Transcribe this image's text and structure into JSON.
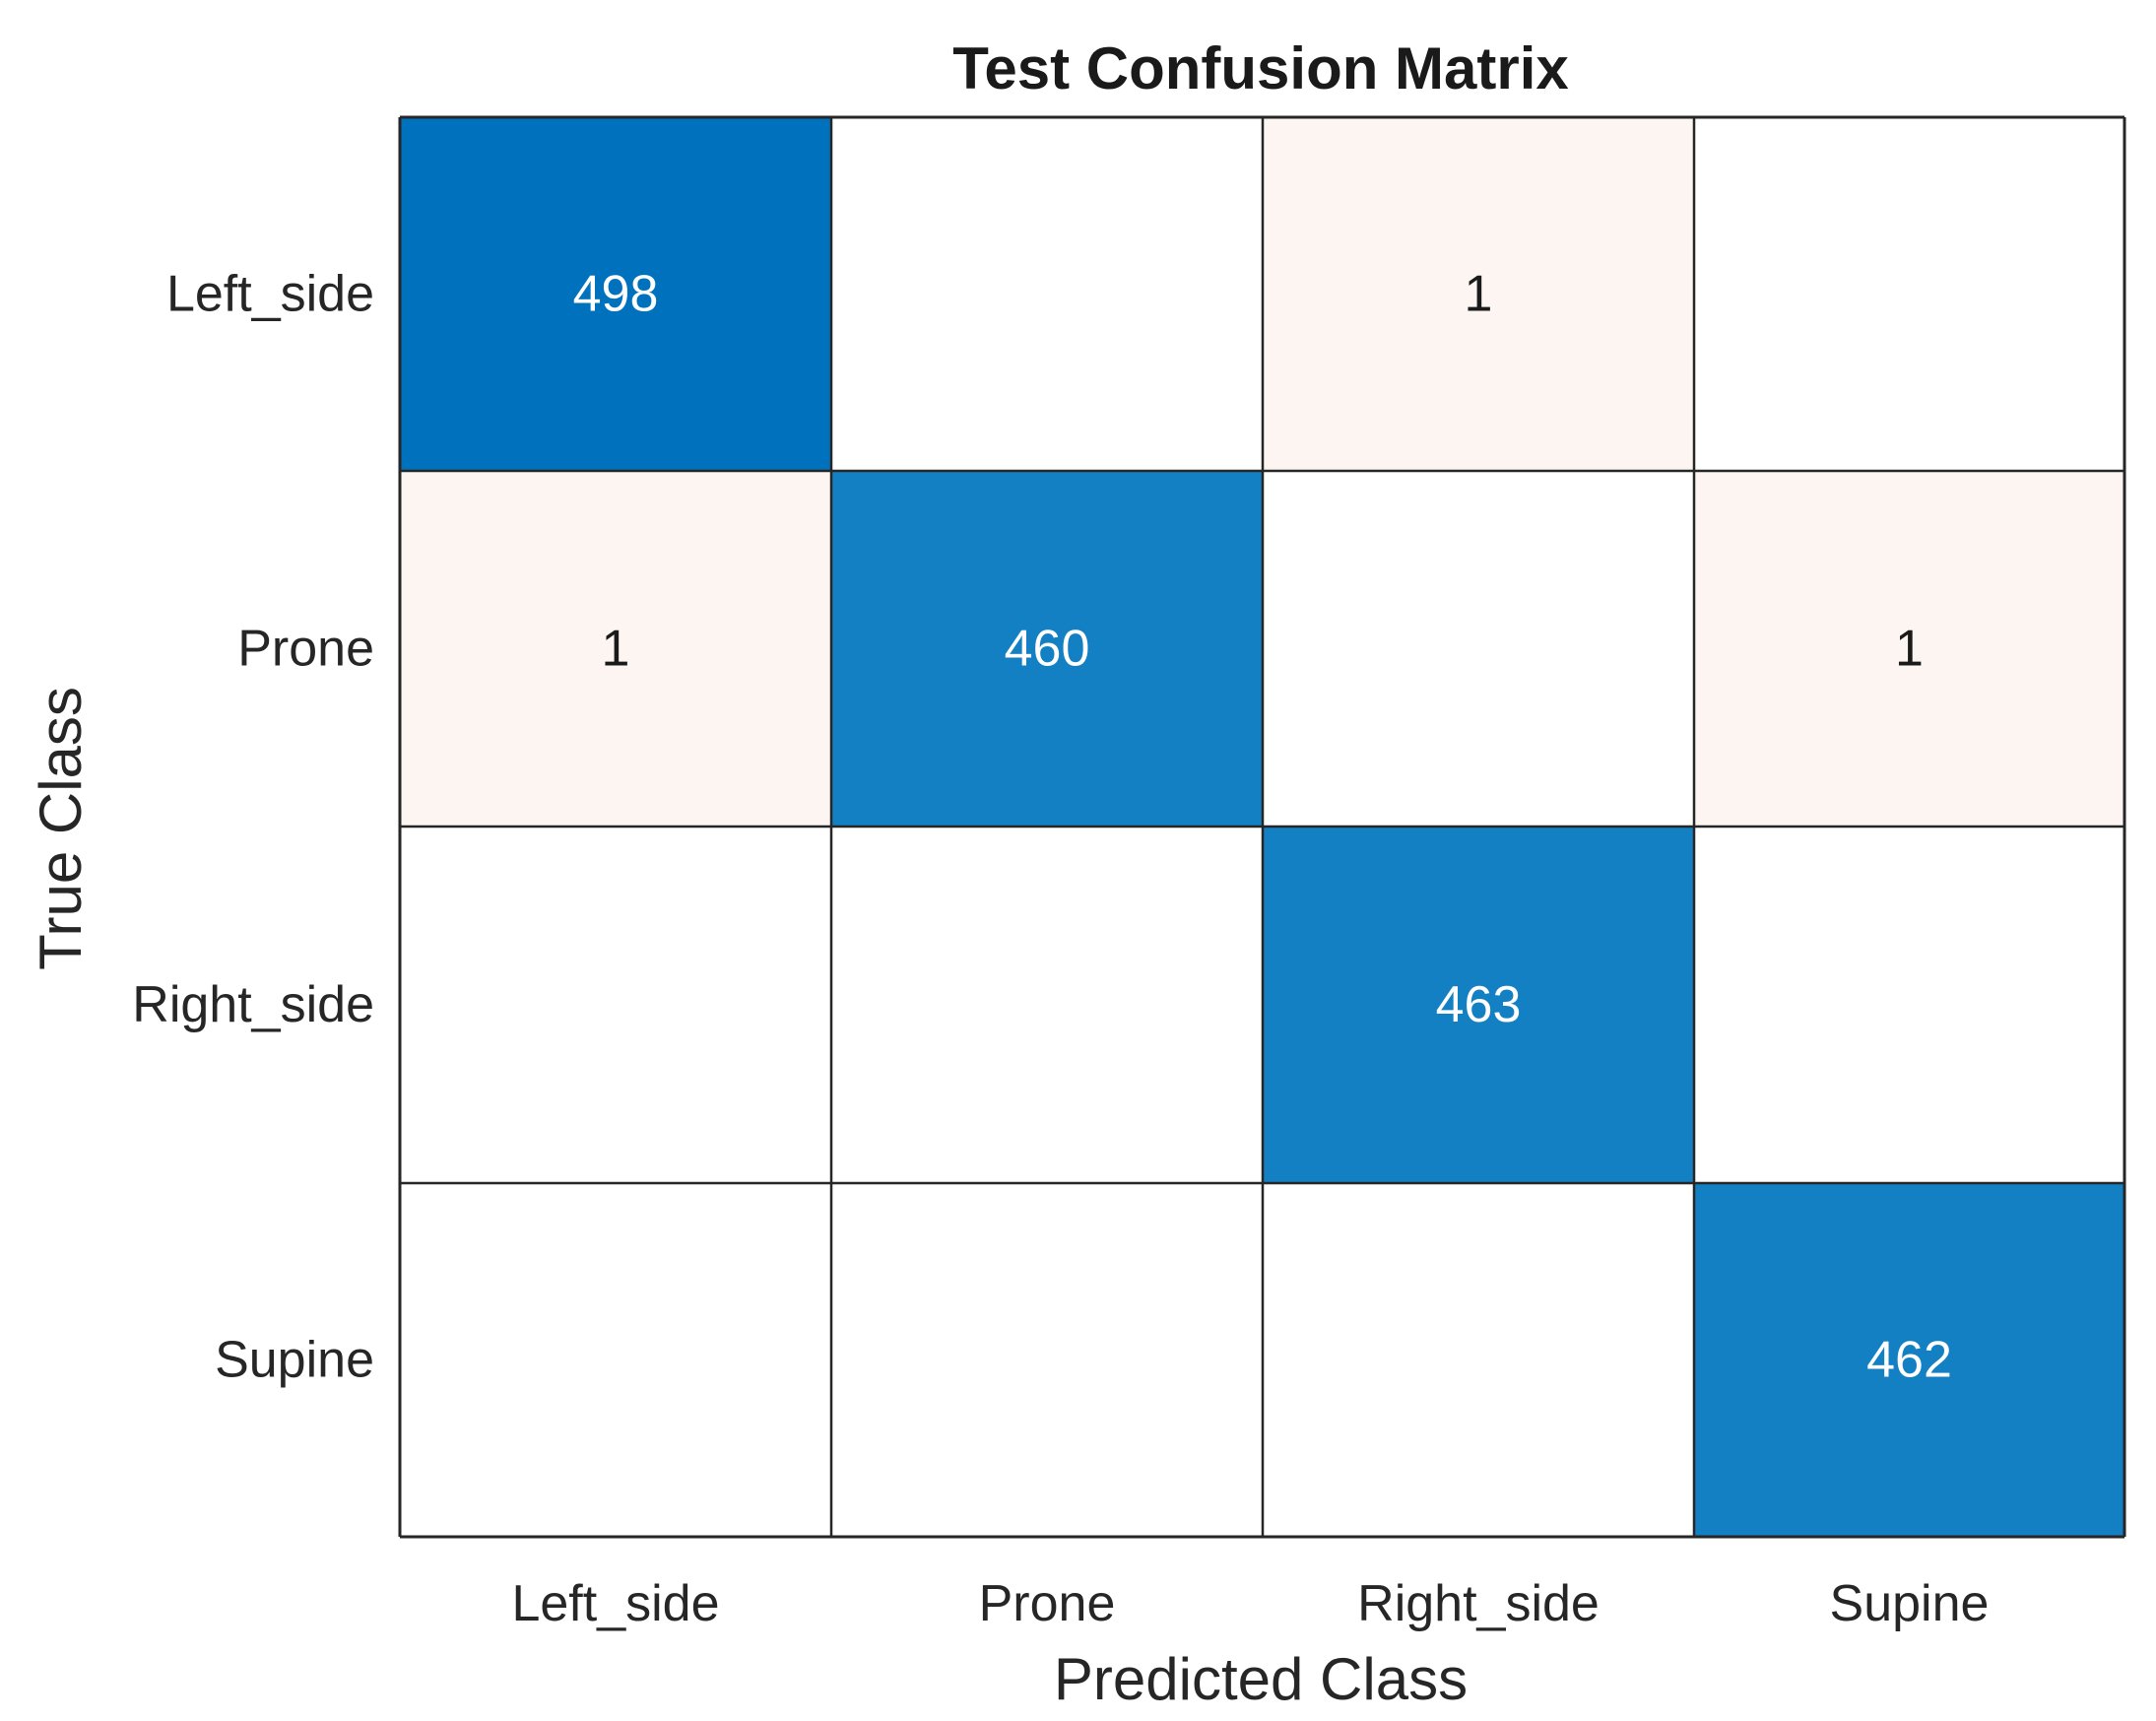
{
  "chart_data": {
    "type": "heatmap",
    "title": "Test Confusion Matrix",
    "xlabel": "Predicted Class",
    "ylabel": "True Class",
    "x_categories": [
      "Left_side",
      "Prone",
      "Right_side",
      "Supine"
    ],
    "y_categories": [
      "Left_side",
      "Prone",
      "Right_side",
      "Supine"
    ],
    "matrix": [
      [
        498,
        null,
        1,
        null
      ],
      [
        1,
        460,
        null,
        1
      ],
      [
        null,
        null,
        463,
        null
      ],
      [
        null,
        null,
        null,
        462
      ]
    ],
    "grid": true,
    "legend": "none",
    "colors": {
      "diagonal_max": "#0072BD",
      "diagonal": "#1380C4",
      "off_diagonal": "#FDF5F2",
      "empty": "#FFFFFF",
      "diagonal_text": "#FFFFFF",
      "off_diagonal_text": "#1A1A1A",
      "grid_line": "#262626"
    }
  }
}
